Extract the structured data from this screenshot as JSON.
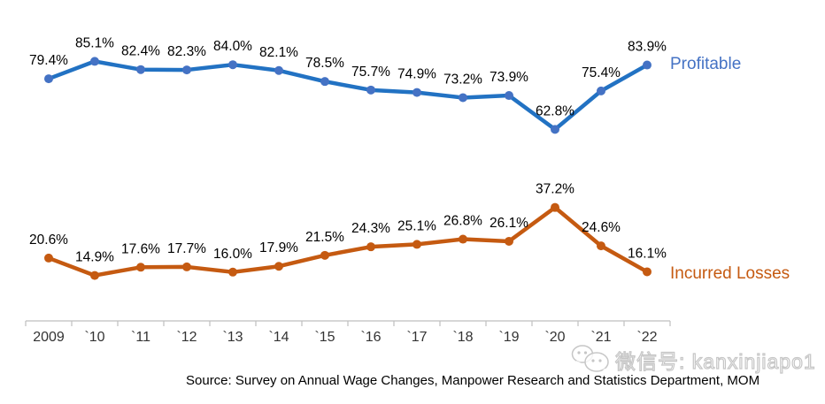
{
  "chart_data": {
    "type": "line",
    "categories": [
      "2009",
      "`10",
      "`11",
      "`12",
      "`13",
      "`14",
      "`15",
      "`16",
      "`17",
      "`18",
      "`19",
      "`20",
      "`21",
      "`22"
    ],
    "series": [
      {
        "name": "Profitable",
        "values": [
          79.4,
          85.1,
          82.4,
          82.3,
          84.0,
          82.1,
          78.5,
          75.7,
          74.9,
          73.2,
          73.9,
          62.8,
          75.4,
          83.9
        ],
        "color": "#2272C3",
        "marker_color": "#4472C4",
        "name_label_color": "#4472C4"
      },
      {
        "name": "Incurred Losses",
        "values": [
          20.6,
          14.9,
          17.6,
          17.7,
          16.0,
          17.9,
          21.5,
          24.3,
          25.1,
          26.8,
          26.1,
          37.2,
          24.6,
          16.1
        ],
        "color": "#C55A11",
        "marker_color": "#C55A11",
        "name_label_color": "#C55A11"
      }
    ],
    "ylim": [
      0,
      100
    ],
    "grid": false,
    "data_labels": true,
    "data_label_suffix": "%",
    "axis_color": "#BFBFBF",
    "category_label_color": "#333333",
    "data_label_color": "#000000",
    "legend_position": "right-of-last-point",
    "y_axis_visible": false
  },
  "source_note": "Source: Survey on Annual Wage Changes, Manpower Research and Statistics Department, MOM",
  "watermark": {
    "icon": "wechat-icon",
    "text": "微信号: kanxinjiapo1"
  }
}
